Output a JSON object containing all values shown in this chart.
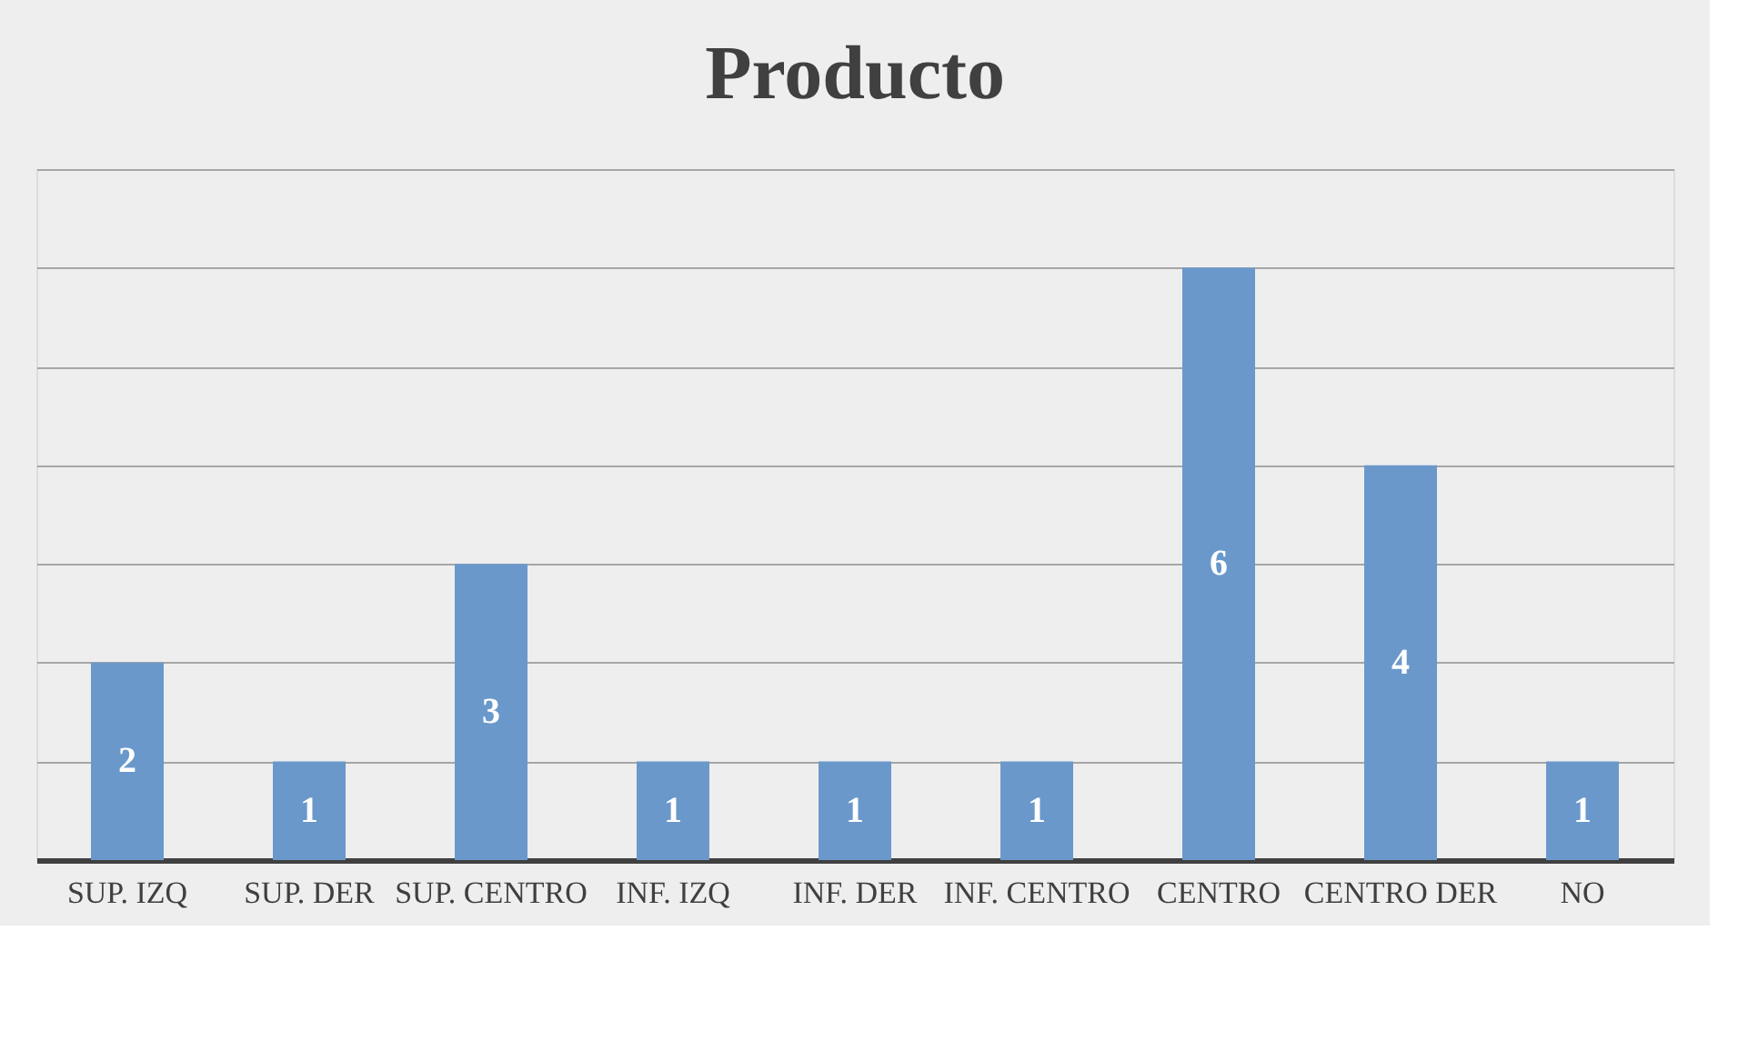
{
  "chart_data": {
    "type": "bar",
    "title": "Producto",
    "categories": [
      "SUP. IZQ",
      "SUP. DER",
      "SUP. CENTRO",
      "INF. IZQ",
      "INF. DER",
      "INF. CENTRO",
      "CENTRO",
      "CENTRO DER",
      "NO"
    ],
    "values": [
      2,
      1,
      3,
      1,
      1,
      1,
      6,
      4,
      1
    ],
    "color": "#6a98cb",
    "ylim": [
      0,
      7
    ],
    "yticks": [
      {
        "value": 0,
        "label": null
      },
      {
        "value": 1,
        "label": null
      },
      {
        "value": 2,
        "label": null
      },
      {
        "value": 3,
        "label": null
      },
      {
        "value": 4,
        "label": null
      },
      {
        "value": 5,
        "label": null
      },
      {
        "value": 6,
        "label": null
      },
      {
        "value": 7,
        "label": null
      }
    ],
    "grid": "y",
    "data_labels": true,
    "tick_labels": "x"
  }
}
